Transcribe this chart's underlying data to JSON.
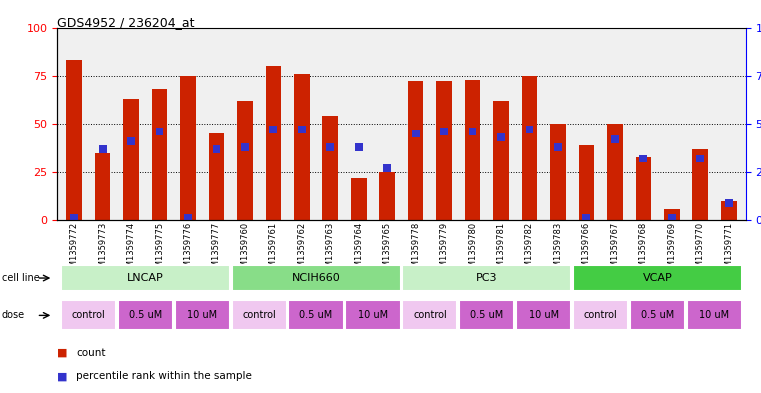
{
  "title": "GDS4952 / 236204_at",
  "samples": [
    "GSM1359772",
    "GSM1359773",
    "GSM1359774",
    "GSM1359775",
    "GSM1359776",
    "GSM1359777",
    "GSM1359760",
    "GSM1359761",
    "GSM1359762",
    "GSM1359763",
    "GSM1359764",
    "GSM1359765",
    "GSM1359778",
    "GSM1359779",
    "GSM1359780",
    "GSM1359781",
    "GSM1359782",
    "GSM1359783",
    "GSM1359766",
    "GSM1359767",
    "GSM1359768",
    "GSM1359769",
    "GSM1359770",
    "GSM1359771"
  ],
  "red_values": [
    83,
    35,
    63,
    68,
    75,
    45,
    62,
    80,
    76,
    54,
    22,
    25,
    72,
    72,
    73,
    62,
    75,
    50,
    39,
    50,
    33,
    6,
    37,
    10
  ],
  "blue_values": [
    1,
    37,
    41,
    46,
    1,
    37,
    38,
    47,
    47,
    38,
    38,
    27,
    45,
    46,
    46,
    43,
    47,
    38,
    1,
    42,
    32,
    1,
    32,
    9
  ],
  "cell_lines": [
    {
      "label": "LNCAP",
      "start": 0,
      "end": 6,
      "color": "#c8f0c8"
    },
    {
      "label": "NCIH660",
      "start": 6,
      "end": 12,
      "color": "#88dd88"
    },
    {
      "label": "PC3",
      "start": 12,
      "end": 18,
      "color": "#c8f0c8"
    },
    {
      "label": "VCAP",
      "start": 18,
      "end": 24,
      "color": "#44cc44"
    }
  ],
  "dose_groups": [
    {
      "label": "control",
      "start": 0,
      "end": 2,
      "bright": false
    },
    {
      "label": "0.5 uM",
      "start": 2,
      "end": 4,
      "bright": true
    },
    {
      "label": "10 uM",
      "start": 4,
      "end": 6,
      "bright": true
    },
    {
      "label": "control",
      "start": 6,
      "end": 8,
      "bright": false
    },
    {
      "label": "0.5 uM",
      "start": 8,
      "end": 10,
      "bright": true
    },
    {
      "label": "10 uM",
      "start": 10,
      "end": 12,
      "bright": true
    },
    {
      "label": "control",
      "start": 12,
      "end": 14,
      "bright": false
    },
    {
      "label": "0.5 uM",
      "start": 14,
      "end": 16,
      "bright": true
    },
    {
      "label": "10 uM",
      "start": 16,
      "end": 18,
      "bright": true
    },
    {
      "label": "control",
      "start": 18,
      "end": 20,
      "bright": false
    },
    {
      "label": "0.5 uM",
      "start": 20,
      "end": 22,
      "bright": true
    },
    {
      "label": "10 uM",
      "start": 22,
      "end": 24,
      "bright": true
    }
  ],
  "bar_color_red": "#cc2200",
  "bar_color_blue": "#3333cc",
  "bar_width": 0.55,
  "ylim": [
    0,
    100
  ],
  "yticks": [
    0,
    25,
    50,
    75,
    100
  ],
  "background_color": "#ffffff",
  "plot_bg_color": "#f0f0f0",
  "dose_color_control": "#f0c8f0",
  "dose_color_bright": "#cc66cc"
}
